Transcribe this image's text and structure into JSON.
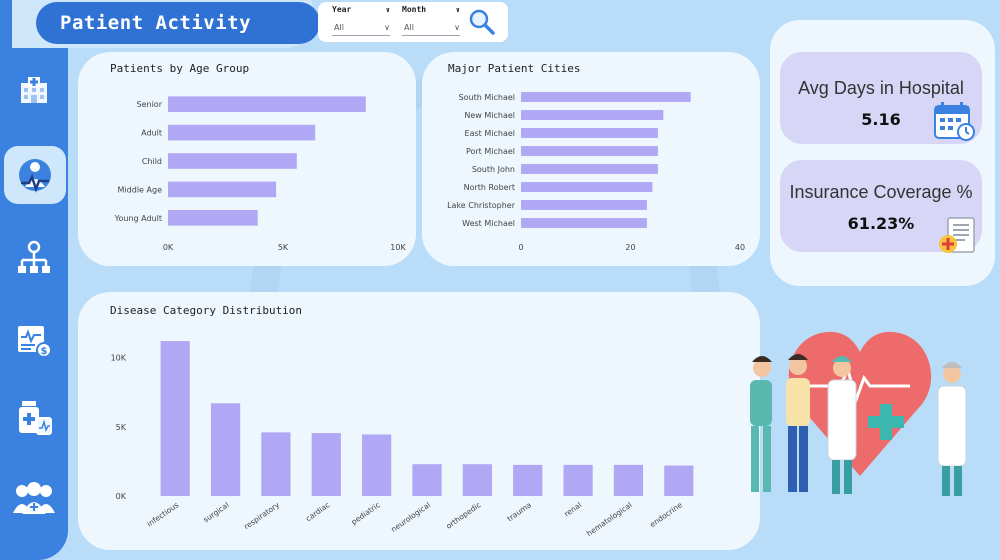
{
  "header": {
    "title": "Patient Activity"
  },
  "filters": [
    {
      "label": "Year",
      "value": "All"
    },
    {
      "label": "Month",
      "value": "All"
    }
  ],
  "kpis": {
    "avg_days": {
      "label": "Avg Days in Hospital",
      "value": "5.16"
    },
    "insurance": {
      "label": "Insurance Coverage %",
      "value": "61.23%"
    }
  },
  "sidebar": {
    "items": [
      {
        "name": "hospital-icon"
      },
      {
        "name": "patient-activity-icon",
        "active": true
      },
      {
        "name": "org-chart-icon"
      },
      {
        "name": "billing-report-icon"
      },
      {
        "name": "medicine-icon"
      },
      {
        "name": "medical-team-icon"
      }
    ]
  },
  "colors": {
    "bar": "#b0a7f5",
    "sidebar": "#3b82e0",
    "card": "#eef7fe",
    "kpi": "#d8d6f6"
  },
  "chart_data": [
    {
      "type": "bar",
      "orientation": "horizontal",
      "title": "Patients by Age Group",
      "categories": [
        "Senior",
        "Adult",
        "Child",
        "Middle Age",
        "Young Adult"
      ],
      "values": [
        8600,
        6400,
        5600,
        4700,
        3900
      ],
      "xlim": [
        0,
        10000
      ],
      "x_ticks": [
        "0K",
        "5K",
        "10K"
      ],
      "x_tick_values": [
        0,
        5000,
        10000
      ]
    },
    {
      "type": "bar",
      "orientation": "horizontal",
      "title": "Major Patient Cities",
      "categories": [
        "South Michael",
        "New Michael",
        "East Michael",
        "Port Michael",
        "South John",
        "North Robert",
        "Lake Christopher",
        "West Michael"
      ],
      "values": [
        31,
        26,
        25,
        25,
        25,
        24,
        23,
        23
      ],
      "xlim": [
        0,
        40
      ],
      "x_ticks": [
        "0",
        "20",
        "40"
      ],
      "x_tick_values": [
        0,
        20,
        40
      ]
    },
    {
      "type": "bar",
      "orientation": "vertical",
      "title": "Disease Category Distribution",
      "categories": [
        "infectious",
        "surgical",
        "respiratory",
        "cardiac",
        "pediatric",
        "neurological",
        "orthopedic",
        "trauma",
        "renal",
        "hematological",
        "endocrine"
      ],
      "values": [
        11200,
        6700,
        4600,
        4550,
        4450,
        2300,
        2300,
        2250,
        2250,
        2250,
        2200
      ],
      "ylim": [
        0,
        12000
      ],
      "y_ticks": [
        "0K",
        "5K",
        "10K"
      ],
      "y_tick_values": [
        0,
        5000,
        10000
      ]
    }
  ]
}
